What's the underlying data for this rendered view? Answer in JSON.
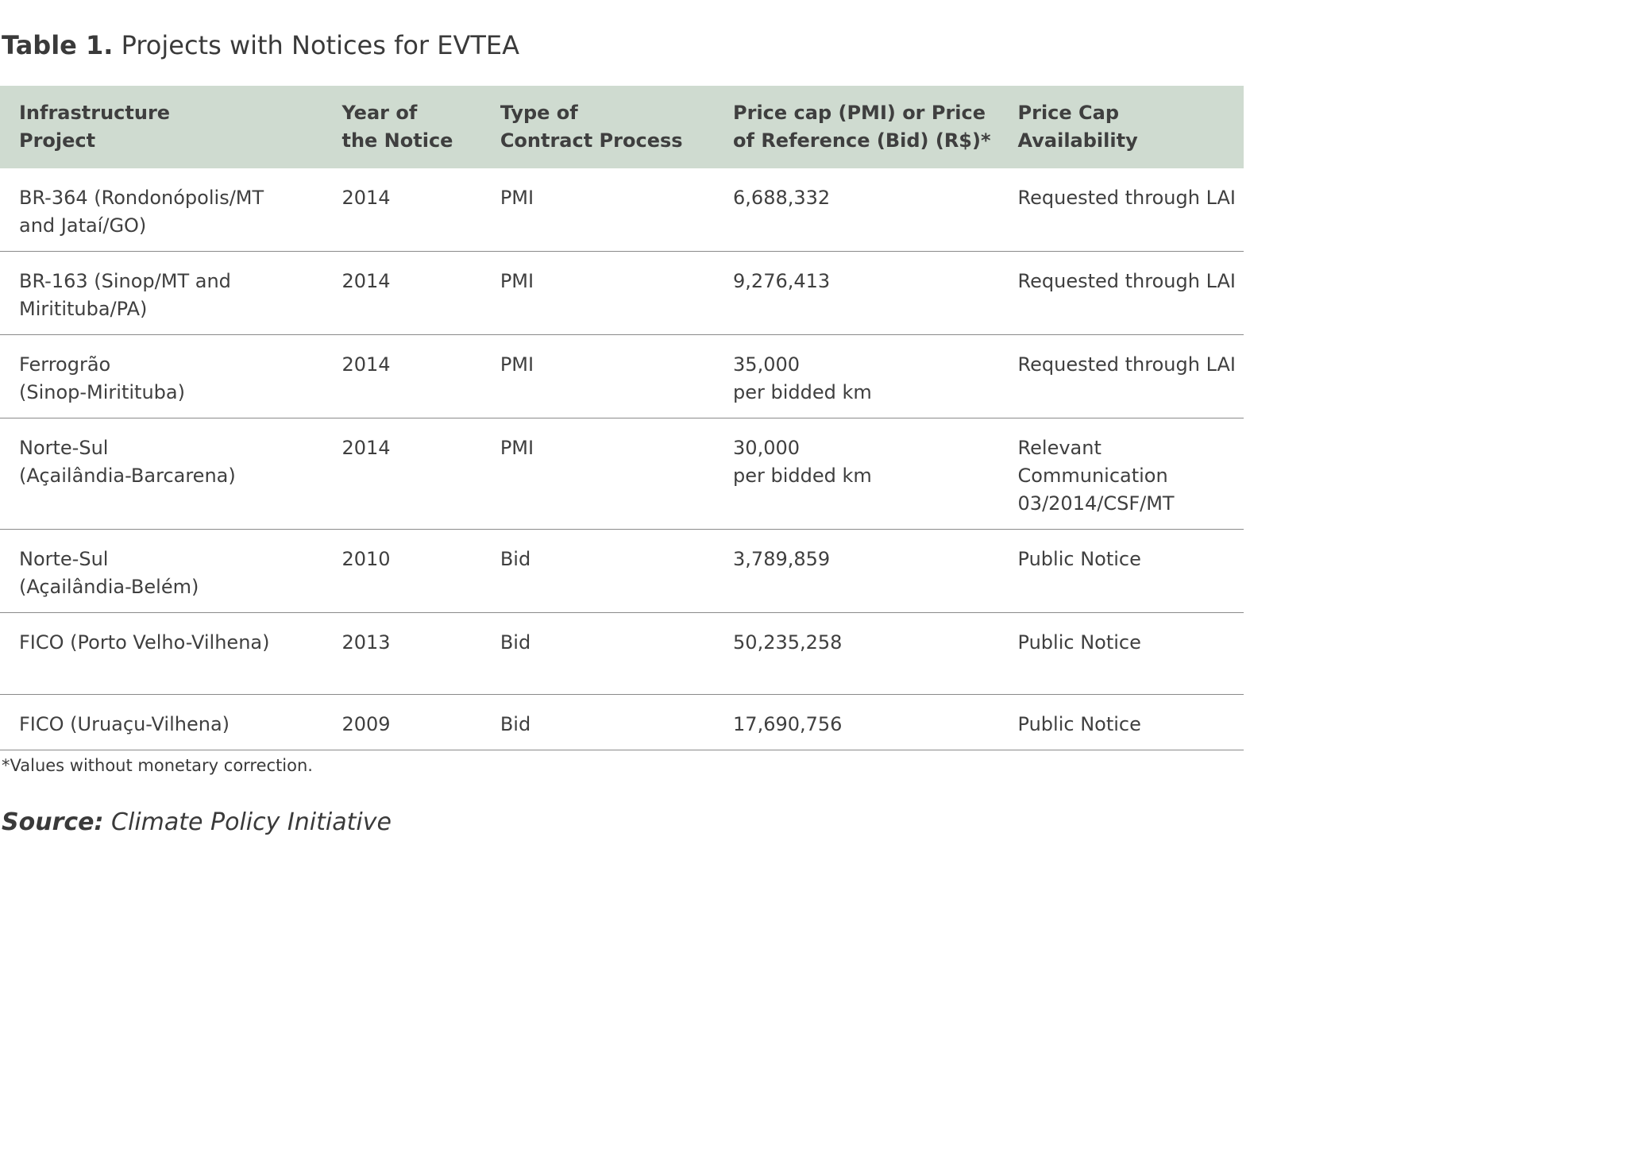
{
  "title": {
    "label": "Table 1.",
    "text": " Projects with Notices for EVTEA"
  },
  "table": {
    "header_bg": "#cfdbd0",
    "headers": [
      [
        "Infrastructure",
        "Project"
      ],
      [
        "Year of",
        "the Notice"
      ],
      [
        "Type of",
        "Contract Process"
      ],
      [
        "Price cap (PMI) or Price",
        "of Reference (Bid) (R$)*"
      ],
      [
        "Price Cap",
        "Availability"
      ]
    ],
    "rows": [
      [
        [
          "BR-364 (Rondonópolis/MT",
          "and Jataí/GO)"
        ],
        [
          "2014"
        ],
        [
          "PMI"
        ],
        [
          "6,688,332"
        ],
        [
          "Requested through LAI"
        ]
      ],
      [
        [
          "BR-163 (Sinop/MT and",
          "Miritituba/PA)"
        ],
        [
          "2014"
        ],
        [
          "PMI"
        ],
        [
          "9,276,413"
        ],
        [
          "Requested through LAI"
        ]
      ],
      [
        [
          "Ferrogrão",
          "(Sinop-Miritituba)"
        ],
        [
          "2014"
        ],
        [
          "PMI"
        ],
        [
          "35,000",
          "per bidded km"
        ],
        [
          "Requested through LAI"
        ]
      ],
      [
        [
          "Norte-Sul",
          "(Açailândia-Barcarena)"
        ],
        [
          "2014"
        ],
        [
          "PMI"
        ],
        [
          "30,000",
          "per bidded km"
        ],
        [
          "Relevant",
          "Communication",
          "03/2014/CSF/MT"
        ]
      ],
      [
        [
          "Norte-Sul",
          "(Açailândia-Belém)"
        ],
        [
          "2010"
        ],
        [
          "Bid"
        ],
        [
          "3,789,859"
        ],
        [
          "Public Notice"
        ]
      ],
      [
        [
          "FICO (Porto Velho-Vilhena)"
        ],
        [
          "2013"
        ],
        [
          "Bid"
        ],
        [
          "50,235,258"
        ],
        [
          "Public Notice"
        ]
      ],
      [
        [
          "FICO (Uruaçu-Vilhena)"
        ],
        [
          "2009"
        ],
        [
          "Bid"
        ],
        [
          "17,690,756"
        ],
        [
          "Public Notice"
        ]
      ]
    ]
  },
  "footnote": "*Values without monetary correction.",
  "source": {
    "label": "Source:",
    "text": " Climate Policy Initiative"
  }
}
